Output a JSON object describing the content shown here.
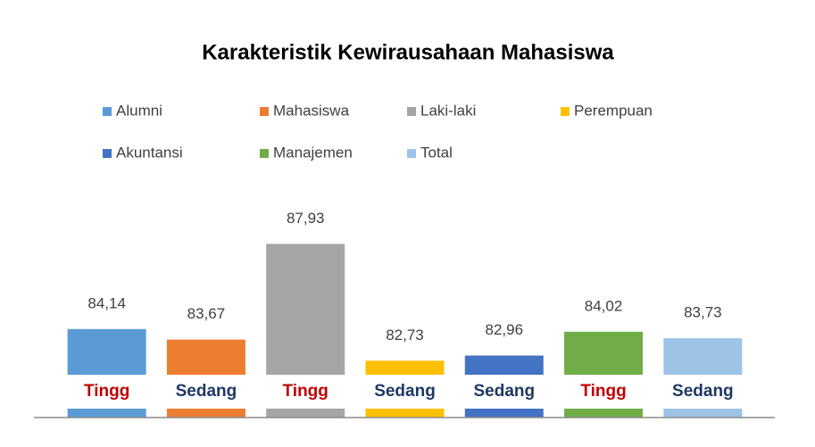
{
  "chart_data": {
    "type": "bar",
    "title": "Karakteristik Kewirausahaan Mahasiswa",
    "categories": [
      "Tingg",
      "Sedang",
      "Tingg",
      "Sedang",
      "Sedang",
      "Tingg",
      "Sedang"
    ],
    "category_colors": [
      "#c00000",
      "#1f3864",
      "#c00000",
      "#1f3864",
      "#1f3864",
      "#c00000",
      "#1f3864"
    ],
    "series": [
      {
        "name": "Alumni",
        "color": "#5b9bd5",
        "values": [
          84.14,
          null,
          null,
          null,
          null,
          null,
          null
        ],
        "value_labels": [
          "84,14",
          null,
          null,
          null,
          null,
          null,
          null
        ]
      },
      {
        "name": "Mahasiswa",
        "color": "#ed7d31",
        "values": [
          null,
          83.67,
          null,
          null,
          null,
          null,
          null
        ],
        "value_labels": [
          null,
          "83,67",
          null,
          null,
          null,
          null,
          null
        ]
      },
      {
        "name": "Laki-laki",
        "color": "#a5a5a5",
        "values": [
          null,
          null,
          87.93,
          null,
          null,
          null,
          null
        ],
        "value_labels": [
          null,
          null,
          "87,93",
          null,
          null,
          null,
          null
        ]
      },
      {
        "name": "Perempuan",
        "color": "#ffc000",
        "values": [
          null,
          null,
          null,
          82.73,
          null,
          null,
          null
        ],
        "value_labels": [
          null,
          null,
          null,
          "82,73",
          null,
          null,
          null
        ]
      },
      {
        "name": "Akuntansi",
        "color": "#4472c4",
        "values": [
          null,
          null,
          null,
          null,
          82.96,
          null,
          null
        ],
        "value_labels": [
          null,
          null,
          null,
          null,
          "82,96",
          null,
          null
        ]
      },
      {
        "name": "Manajemen",
        "color": "#70ad47",
        "values": [
          null,
          null,
          null,
          null,
          null,
          84.02,
          null
        ],
        "value_labels": [
          null,
          null,
          null,
          null,
          null,
          "84,02",
          null
        ]
      },
      {
        "name": "Total",
        "color": "#9dc3e6",
        "values": [
          null,
          null,
          null,
          null,
          null,
          null,
          83.73
        ],
        "value_labels": [
          null,
          null,
          null,
          null,
          null,
          null,
          "83,73"
        ]
      }
    ],
    "ylim": [
      80.2,
      88.5
    ]
  }
}
